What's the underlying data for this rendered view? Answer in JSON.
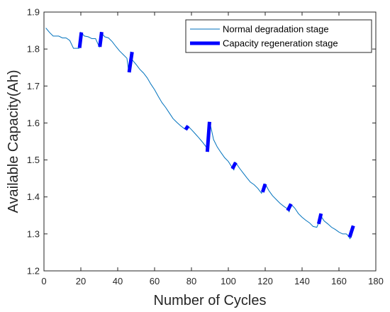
{
  "chart_data": {
    "type": "line",
    "title": "",
    "xlabel": "Number of Cycles",
    "ylabel": "Available Capacity(Ah)",
    "xlim": [
      0,
      180
    ],
    "ylim": [
      1.2,
      1.9
    ],
    "xticks": [
      0,
      20,
      40,
      60,
      80,
      100,
      120,
      140,
      160,
      180
    ],
    "yticks": [
      1.2,
      1.3,
      1.4,
      1.5,
      1.6,
      1.7,
      1.8,
      1.9
    ],
    "grid": false,
    "legend_position": "top-right",
    "colors": {
      "normal": "#0072BD",
      "regeneration": "#0000FF",
      "axis": "#262626"
    },
    "series": [
      {
        "name": "Normal degradation stage",
        "style": "thin-line",
        "x": [
          1,
          3,
          5,
          8,
          10,
          12,
          14,
          16,
          18,
          19,
          20,
          22,
          24,
          26,
          28,
          30,
          31,
          33,
          35,
          37,
          39,
          41,
          43,
          45,
          46,
          47,
          48,
          50,
          52,
          54,
          56,
          58,
          60,
          62,
          64,
          66,
          68,
          70,
          72,
          74,
          76,
          77,
          78,
          80,
          82,
          84,
          86,
          88,
          89,
          90,
          92,
          94,
          96,
          98,
          100,
          102,
          103,
          104,
          106,
          108,
          110,
          112,
          114,
          116,
          118,
          119,
          120,
          122,
          124,
          126,
          128,
          130,
          132,
          133,
          134,
          136,
          138,
          140,
          142,
          144,
          146,
          148,
          149,
          150,
          152,
          154,
          156,
          158,
          160,
          162,
          164,
          165,
          166,
          167,
          168
        ],
        "y": [
          1.857,
          1.845,
          1.835,
          1.835,
          1.83,
          1.83,
          1.823,
          1.802,
          1.802,
          1.802,
          1.845,
          1.835,
          1.833,
          1.828,
          1.828,
          1.806,
          1.845,
          1.833,
          1.83,
          1.82,
          1.807,
          1.795,
          1.785,
          1.775,
          1.737,
          1.793,
          1.77,
          1.758,
          1.745,
          1.735,
          1.722,
          1.705,
          1.69,
          1.672,
          1.655,
          1.642,
          1.627,
          1.612,
          1.602,
          1.593,
          1.585,
          1.582,
          1.592,
          1.582,
          1.571,
          1.56,
          1.548,
          1.535,
          1.522,
          1.601,
          1.555,
          1.535,
          1.52,
          1.506,
          1.496,
          1.48,
          1.473,
          1.493,
          1.478,
          1.465,
          1.452,
          1.44,
          1.433,
          1.423,
          1.41,
          1.42,
          1.435,
          1.417,
          1.403,
          1.393,
          1.383,
          1.375,
          1.368,
          1.36,
          1.38,
          1.37,
          1.355,
          1.345,
          1.337,
          1.33,
          1.32,
          1.318,
          1.33,
          1.35,
          1.335,
          1.327,
          1.318,
          1.312,
          1.305,
          1.3,
          1.3,
          1.295,
          1.287,
          1.297,
          1.32
        ]
      },
      {
        "name": "Capacity regeneration stage",
        "style": "thick-segments",
        "segments": [
          [
            [
              19.3,
              1.803
            ],
            [
              20.3,
              1.845
            ]
          ],
          [
            [
              30.3,
              1.806
            ],
            [
              31.3,
              1.846
            ]
          ],
          [
            [
              46.2,
              1.737
            ],
            [
              47.8,
              1.792
            ]
          ],
          [
            [
              76.8,
              1.582
            ],
            [
              78.2,
              1.592
            ]
          ],
          [
            [
              88.6,
              1.522
            ],
            [
              89.8,
              1.603
            ]
          ],
          [
            [
              102.2,
              1.476
            ],
            [
              104.0,
              1.493
            ]
          ],
          [
            [
              118.6,
              1.413
            ],
            [
              120.0,
              1.435
            ]
          ],
          [
            [
              132.2,
              1.363
            ],
            [
              134.0,
              1.381
            ]
          ],
          [
            [
              149.0,
              1.327
            ],
            [
              150.3,
              1.355
            ]
          ],
          [
            [
              165.8,
              1.291
            ],
            [
              167.8,
              1.322
            ]
          ]
        ]
      }
    ]
  }
}
